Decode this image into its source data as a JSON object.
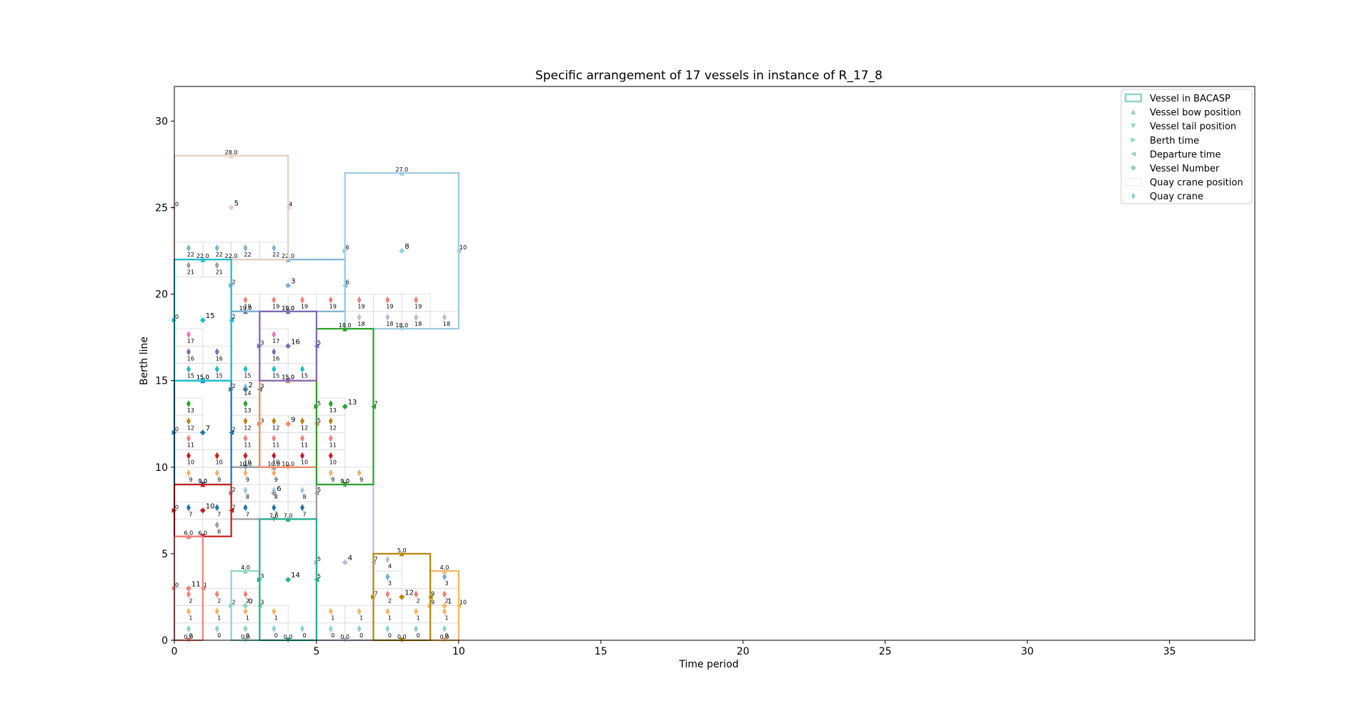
{
  "chart_data": {
    "type": "scatter",
    "title": "Specific arrangement of 17 vessels in instance of R_17_8",
    "xlabel": "Time period",
    "ylabel": "Berth line",
    "xlim": [
      0,
      38
    ],
    "ylim": [
      0,
      32
    ],
    "xticks": [
      0,
      5,
      10,
      15,
      20,
      25,
      30,
      35
    ],
    "yticks": [
      0,
      5,
      10,
      15,
      20,
      25,
      30
    ],
    "grid": false,
    "legend_position": "top-right",
    "legend": [
      {
        "label": "Vessel in BACASP",
        "marker": "rect"
      },
      {
        "label": "Vessel bow position",
        "marker": "tri-up"
      },
      {
        "label": "Vessel tail position",
        "marker": "tri-down"
      },
      {
        "label": "Berth time",
        "marker": "tri-right"
      },
      {
        "label": "Departure time",
        "marker": "tri-left"
      },
      {
        "label": "Vessel Number",
        "marker": "diamond"
      },
      {
        "label": "Quay crane position",
        "marker": "cell"
      },
      {
        "label": "Quay crane",
        "marker": "thin-diamond"
      }
    ],
    "vessels": [
      {
        "id": 0,
        "berth": 2,
        "depart": 3,
        "tail": 0,
        "bow": 4,
        "color": "#8dd3c7"
      },
      {
        "id": 1,
        "berth": 9,
        "depart": 10,
        "tail": 0,
        "bow": 4,
        "color": "#fdb462"
      },
      {
        "id": 2,
        "berth": 2,
        "depart": 3,
        "tail": 10,
        "bow": 19,
        "color": "#4a78a8"
      },
      {
        "id": 3,
        "berth": 2,
        "depart": 6,
        "tail": 19,
        "bow": 22,
        "color": "#80b1d3"
      },
      {
        "id": 4,
        "berth": 5,
        "depart": 7,
        "tail": 0,
        "bow": 9,
        "color": "#bebada"
      },
      {
        "id": 5,
        "berth": 0,
        "depart": 4,
        "tail": 22,
        "bow": 28,
        "color": "#e8cfc2"
      },
      {
        "id": 6,
        "berth": 2,
        "depart": 5,
        "tail": 7,
        "bow": 10,
        "color": "#9e9e9e"
      },
      {
        "id": 7,
        "berth": 0,
        "depart": 2,
        "tail": 9,
        "bow": 15,
        "color": "#1f77b4"
      },
      {
        "id": 8,
        "berth": 6,
        "depart": 10,
        "tail": 18,
        "bow": 27,
        "color": "#9ecae1"
      },
      {
        "id": 9,
        "berth": 3,
        "depart": 5,
        "tail": 10,
        "bow": 15,
        "color": "#fb8862"
      },
      {
        "id": 10,
        "berth": 0,
        "depart": 2,
        "tail": 6,
        "bow": 9,
        "color": "#c41e1e"
      },
      {
        "id": 11,
        "berth": 0,
        "depart": 1,
        "tail": 0,
        "bow": 6,
        "color": "#f28078"
      },
      {
        "id": 12,
        "berth": 7,
        "depart": 9,
        "tail": 0,
        "bow": 5,
        "color": "#b8860b"
      },
      {
        "id": 13,
        "berth": 5,
        "depart": 7,
        "tail": 9,
        "bow": 18,
        "color": "#2ca02c"
      },
      {
        "id": 14,
        "berth": 3,
        "depart": 5,
        "tail": 0,
        "bow": 7,
        "color": "#20b08a"
      },
      {
        "id": 15,
        "berth": 0,
        "depart": 2,
        "tail": 15,
        "bow": 22,
        "color": "#17becf"
      },
      {
        "id": 16,
        "berth": 3,
        "depart": 5,
        "tail": 15,
        "bow": 19,
        "color": "#7f6bb0"
      }
    ],
    "quay_crane_columns": [
      {
        "t": 0.5,
        "cranes": [
          0,
          1,
          2,
          7,
          9,
          10,
          11,
          12,
          13,
          15,
          16,
          17,
          21,
          22
        ]
      },
      {
        "t": 1.5,
        "cranes": [
          0,
          1,
          2,
          6,
          7,
          9,
          10,
          15,
          16,
          21,
          22
        ]
      },
      {
        "t": 2.5,
        "cranes": [
          0,
          1,
          2,
          7,
          8,
          9,
          10,
          11,
          12,
          13,
          14,
          15,
          19,
          22
        ]
      },
      {
        "t": 3.5,
        "cranes": [
          0,
          1,
          7,
          8,
          9,
          10,
          11,
          12,
          15,
          16,
          17,
          19,
          22
        ]
      },
      {
        "t": 4.5,
        "cranes": [
          0,
          7,
          8,
          10,
          11,
          12,
          15,
          19
        ]
      },
      {
        "t": 5.5,
        "cranes": [
          0,
          1,
          9,
          10,
          11,
          12,
          13,
          19
        ]
      },
      {
        "t": 6.5,
        "cranes": [
          0,
          1,
          9,
          18,
          19
        ]
      },
      {
        "t": 7.5,
        "cranes": [
          0,
          1,
          2,
          3,
          4,
          18,
          19
        ]
      },
      {
        "t": 8.5,
        "cranes": [
          0,
          1,
          2,
          18,
          19
        ]
      },
      {
        "t": 9.5,
        "cranes": [
          0,
          1,
          2,
          3,
          18
        ]
      }
    ]
  }
}
